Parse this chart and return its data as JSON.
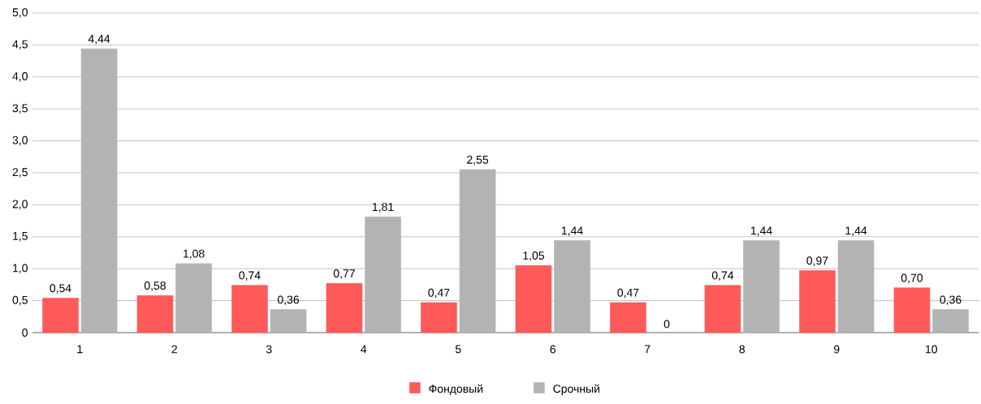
{
  "chart_data": {
    "type": "bar",
    "categories": [
      "1",
      "2",
      "3",
      "4",
      "5",
      "6",
      "7",
      "8",
      "9",
      "10"
    ],
    "series": [
      {
        "name": "Фондовый",
        "color": "#ff5a5a",
        "values": [
          0.54,
          0.58,
          0.74,
          0.77,
          0.47,
          1.05,
          0.47,
          0.74,
          0.97,
          0.7
        ],
        "value_labels": [
          "0,54",
          "0,58",
          "0,74",
          "0,77",
          "0,47",
          "1,05",
          "0,47",
          "0,74",
          "0,97",
          "0,70"
        ]
      },
      {
        "name": "Срочный",
        "color": "#b3b3b3",
        "values": [
          4.44,
          1.08,
          0.36,
          1.81,
          2.55,
          1.44,
          0,
          1.44,
          1.44,
          0.36
        ],
        "value_labels": [
          "4,44",
          "1,08",
          "0,36",
          "1,81",
          "2,55",
          "1,44",
          "0",
          "1,44",
          "1,44",
          "0,36"
        ]
      }
    ],
    "ylim": [
      0,
      5
    ],
    "yticks": [
      0,
      {
        "value": 0.5,
        "label": "0,5"
      },
      {
        "value": 1,
        "label": "1,0"
      },
      {
        "value": 1.5,
        "label": "1,5"
      },
      {
        "value": 2,
        "label": "2,0"
      },
      {
        "value": 2.5,
        "label": "2,5"
      },
      {
        "value": 3,
        "label": "3,0"
      },
      {
        "value": 3.5,
        "label": "3,5"
      },
      {
        "value": 4,
        "label": "4,0"
      },
      {
        "value": 4.5,
        "label": "4,5"
      },
      {
        "value": 5,
        "label": "5,0"
      }
    ],
    "grid": "y",
    "legend": "bottom"
  }
}
